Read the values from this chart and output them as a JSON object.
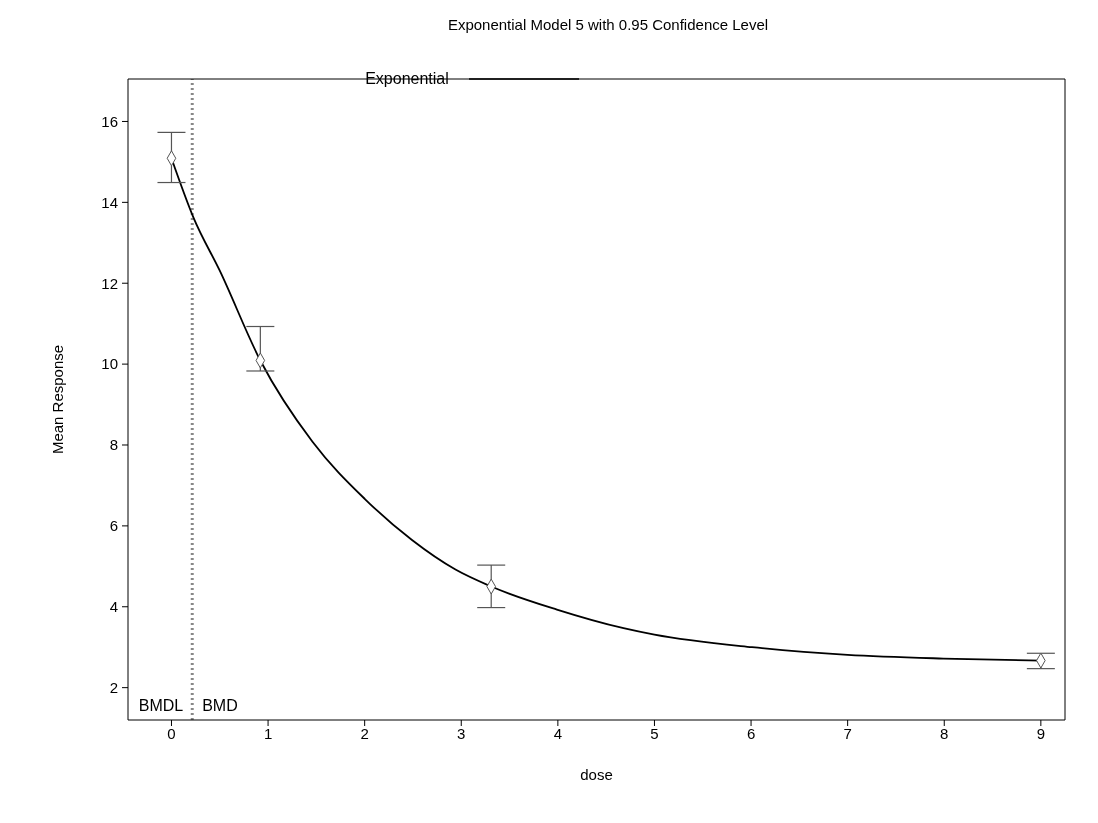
{
  "chart_data": {
    "type": "line",
    "title": "Exponential Model 5 with 0.95 Confidence Level",
    "xlabel": "dose",
    "ylabel": "Mean Response",
    "xlim": [
      -0.45,
      9.25
    ],
    "xticks": [
      0,
      1,
      2,
      3,
      4,
      5,
      6,
      7,
      8,
      9
    ],
    "ylim": [
      1.2,
      17.05
    ],
    "yticks": [
      2,
      4,
      6,
      8,
      10,
      12,
      14,
      16
    ],
    "grid": false,
    "legend": "top",
    "series": [
      {
        "name": "Exponential",
        "color": "#000000",
        "marker": "none",
        "line_style": "solid",
        "x": [
          0,
          0.23,
          0.5,
          0.92,
          1.46,
          2.0,
          2.49,
          2.94,
          3.31,
          3.99,
          4.68,
          5.0,
          6.01,
          7.0,
          7.99,
          9
        ],
        "values": [
          15.09,
          13.61,
          12.31,
          10.09,
          8.08,
          6.67,
          5.65,
          4.92,
          4.5,
          3.93,
          3.47,
          3.31,
          3.0,
          2.81,
          2.72,
          2.67
        ]
      },
      {
        "type": "scatter",
        "color": "#555555",
        "marker": "diamond",
        "x": [
          0,
          0.92,
          3.31,
          9
        ],
        "values": [
          15.09,
          10.09,
          4.5,
          2.67
        ],
        "errors": [
          [
            14.49,
            15.73
          ],
          [
            9.83,
            10.93
          ],
          [
            3.98,
            5.03
          ],
          [
            2.47,
            2.85
          ]
        ]
      }
    ],
    "ref_lines": [
      {
        "axis": "x",
        "value": 0.21,
        "label": "BMDL",
        "color": "#888888",
        "line_style": "dotted"
      },
      {
        "axis": "x",
        "value": 0.22,
        "label": "BMD",
        "color": "#888888",
        "line_style": "dotted"
      }
    ]
  }
}
